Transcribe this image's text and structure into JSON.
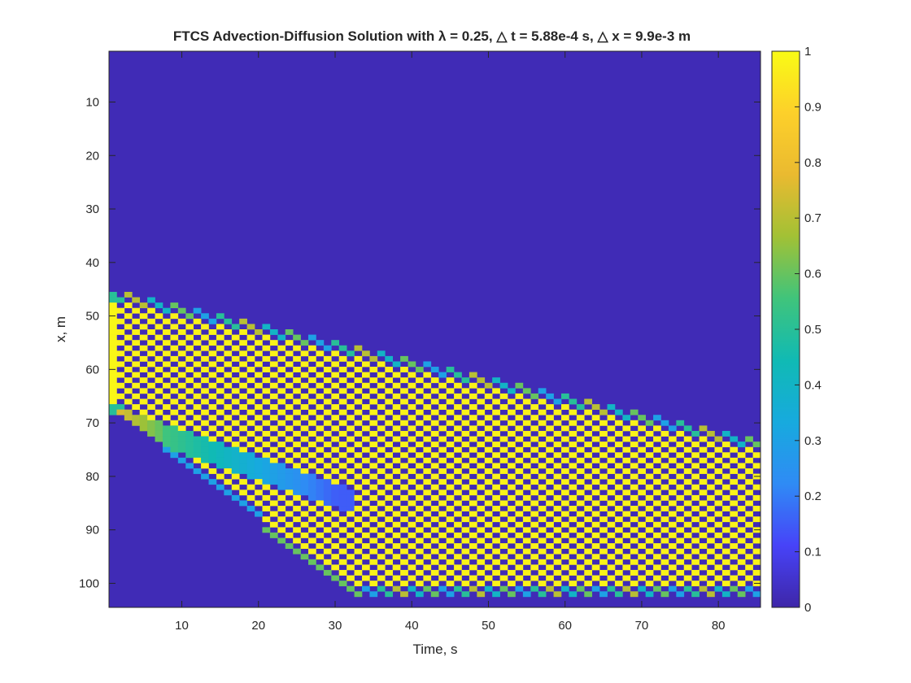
{
  "chart_data": {
    "type": "heatmap",
    "title": "FTCS Advection-Diffusion Solution with λ = 0.25, △ t = 5.88e-4 s, △ x = 9.9e-3 m",
    "xlabel": "Time, s",
    "ylabel": "x, m",
    "x_range": [
      0.5,
      85.5
    ],
    "y_range": [
      0.5,
      104.5
    ],
    "y_reversed": true,
    "n_cols": 85,
    "n_rows": 104,
    "x_ticks": [
      10,
      20,
      30,
      40,
      50,
      60,
      70,
      80
    ],
    "y_ticks": [
      10,
      20,
      30,
      40,
      50,
      60,
      70,
      80,
      90,
      100
    ],
    "colorbar": {
      "range": [
        0,
        1
      ],
      "ticks": [
        0,
        0.1,
        0.2,
        0.3,
        0.4,
        0.5,
        0.6,
        0.7,
        0.8,
        0.9,
        1
      ],
      "tick_labels": [
        "0",
        "0.1",
        "0.2",
        "0.3",
        "0.4",
        "0.5",
        "0.6",
        "0.7",
        "0.8",
        "0.9",
        "1"
      ],
      "colormap": "parula",
      "colormap_stops": [
        "#3e26a8",
        "#4743f8",
        "#2f8bf5",
        "#17aade",
        "#10bab4",
        "#40c47b",
        "#a2c135",
        "#eaba30",
        "#fdd02a",
        "#f9fb15"
      ]
    },
    "pulse": {
      "initial_center_x": 57,
      "initial_half_width": 11,
      "upper_edge_start": 45,
      "upper_edge_slope": 0.33,
      "lower_edge_start": 67,
      "lower_edge_slope": 1.15,
      "split_start": 70,
      "split_slope": 0.5,
      "split_end_time": 32,
      "bottom_boundary": 102
    },
    "background_value": 0.02,
    "grid": false,
    "legend": "colorbar-right"
  }
}
